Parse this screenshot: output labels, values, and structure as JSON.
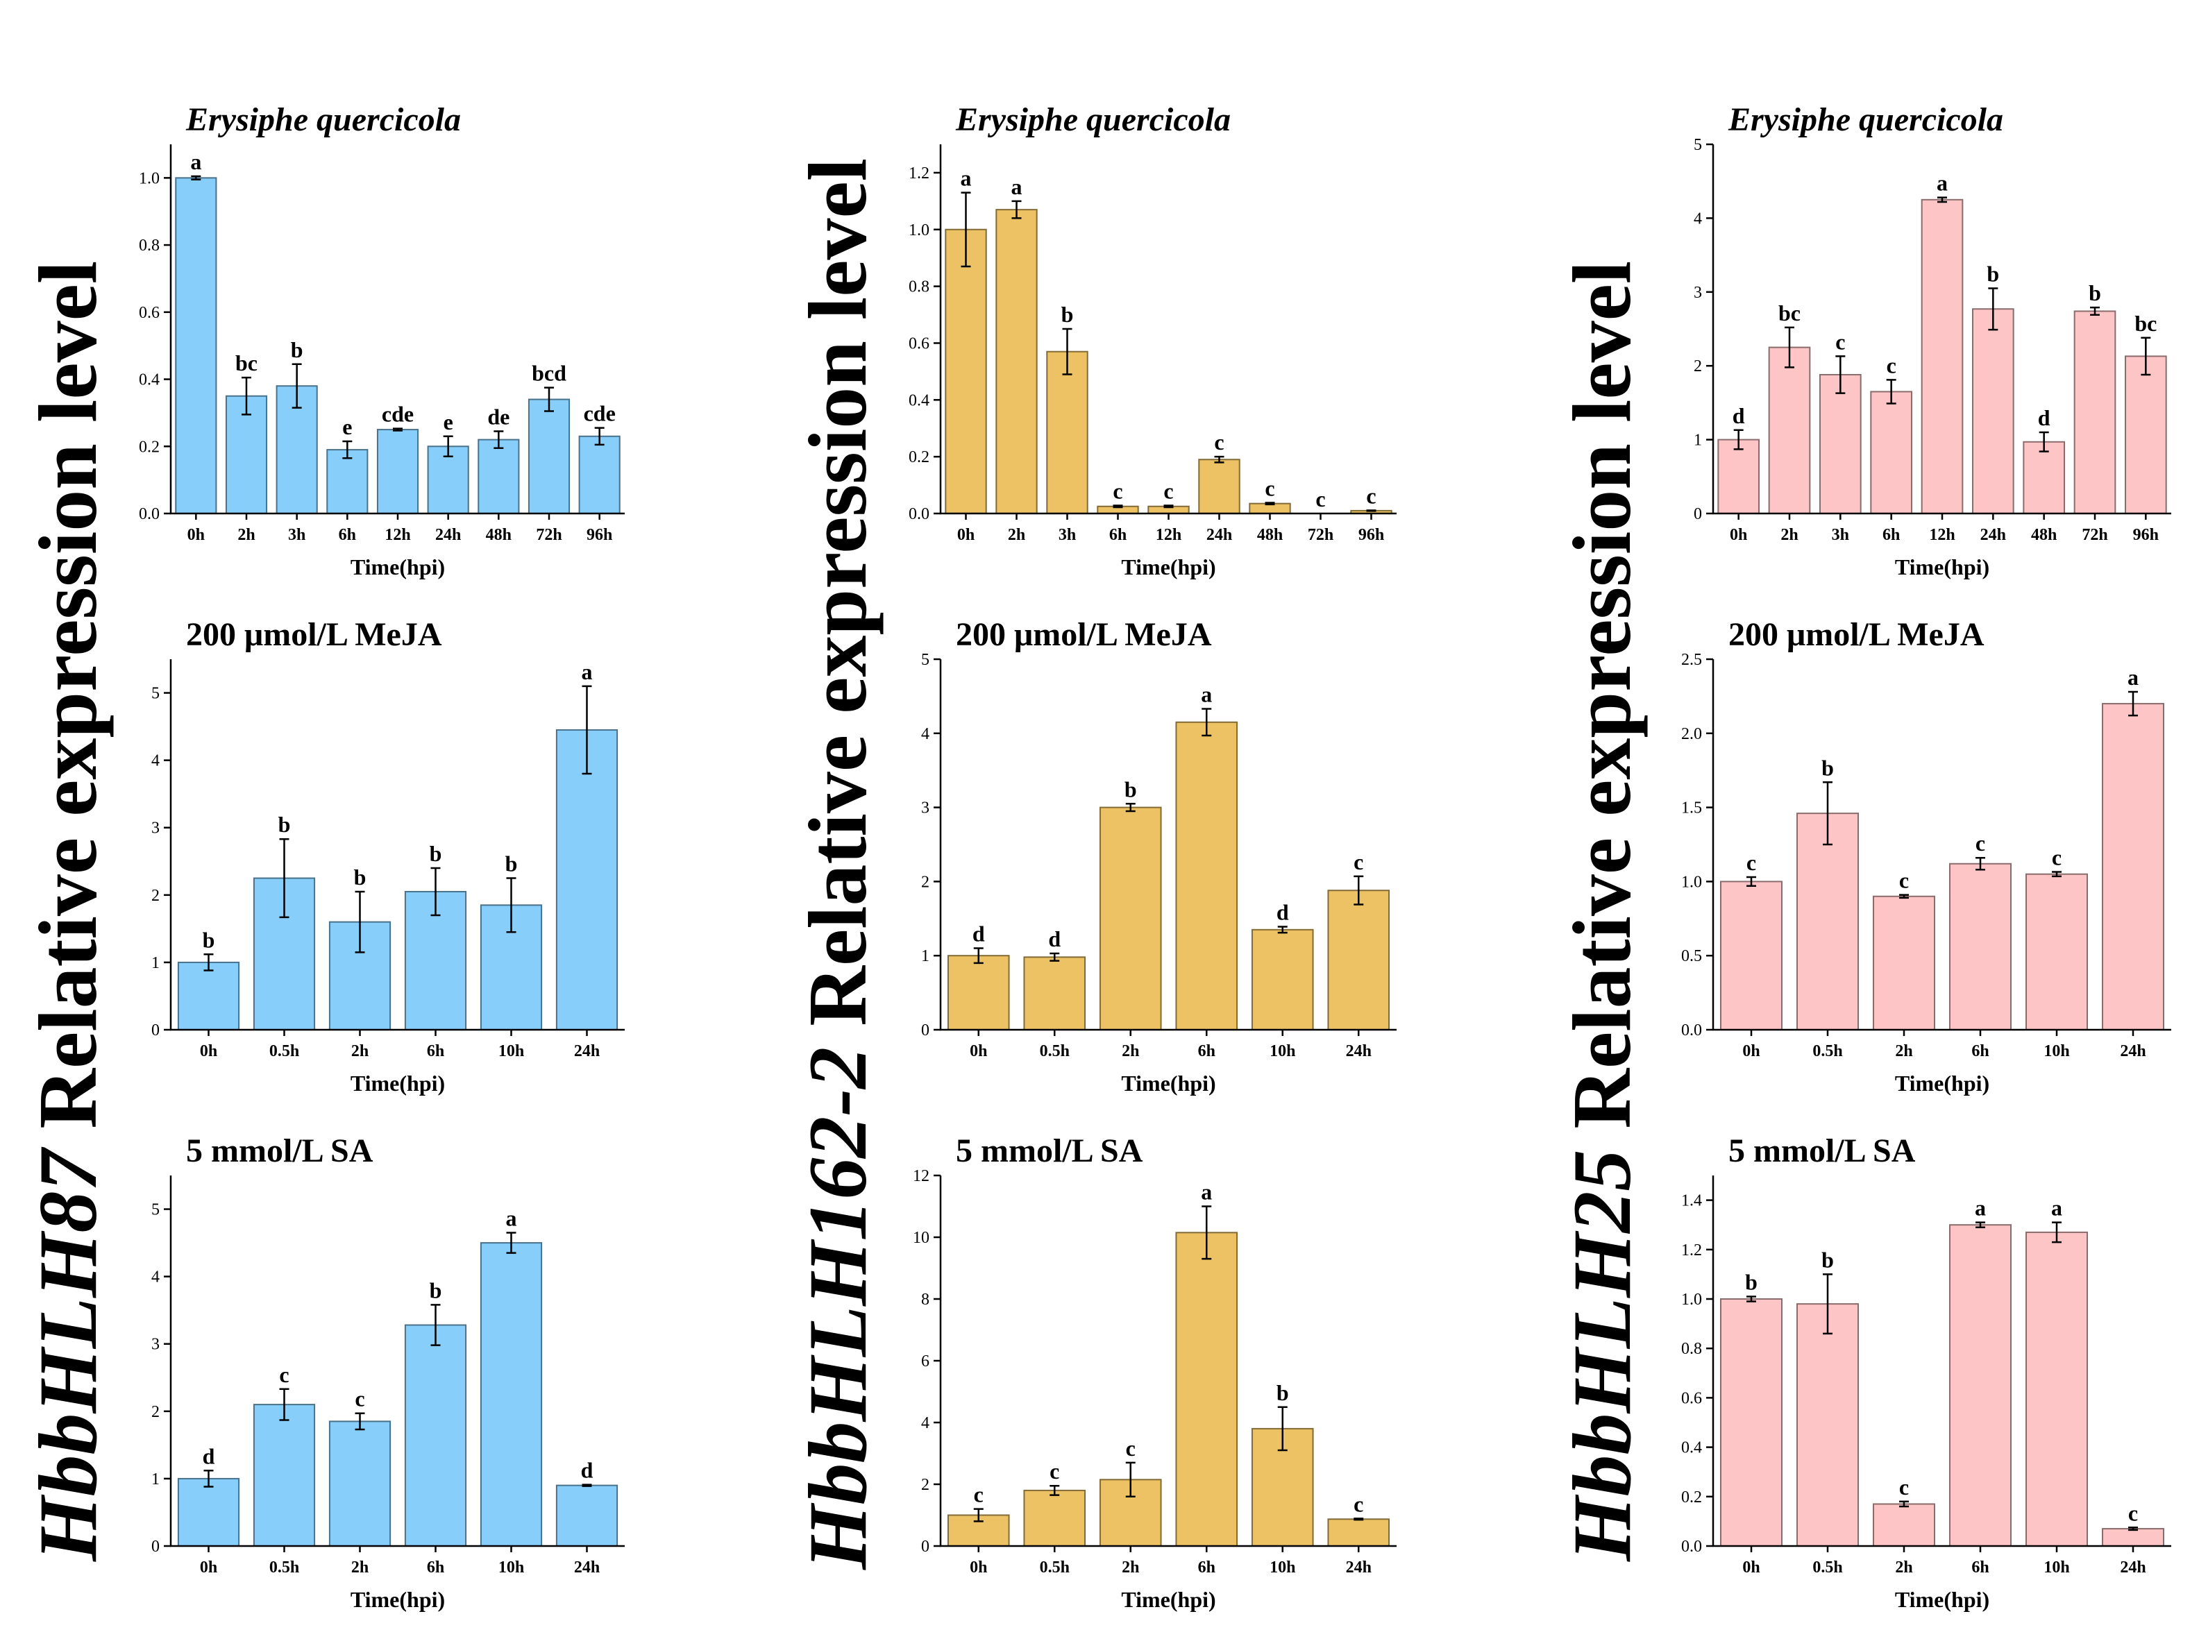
{
  "gene_labels": [
    {
      "gene": "HbbHLH87",
      "suffix": " Relative expression level"
    },
    {
      "gene": "HbbHLH162-2",
      "suffix": " Relative expression level"
    },
    {
      "gene": "HbbHLH25",
      "suffix": " Relative expression level"
    }
  ],
  "chart_data": [
    {
      "id": "c11",
      "col": 0,
      "row": 0,
      "type": "bar",
      "title": "Erysiphe quercicola",
      "title_italic": true,
      "xlabel": "Time(hpi)",
      "ylabel": "Relative expression level",
      "color": "#87cefa",
      "ylim": [
        0,
        1.1
      ],
      "yticks": [
        0.0,
        0.2,
        0.4,
        0.6,
        0.8,
        1.0
      ],
      "ytick_decimals": 1,
      "categories": [
        "0h",
        "2h",
        "3h",
        "6h",
        "12h",
        "24h",
        "48h",
        "72h",
        "96h"
      ],
      "values": [
        1.0,
        0.35,
        0.38,
        0.19,
        0.25,
        0.2,
        0.22,
        0.34,
        0.23
      ],
      "errors": [
        0.005,
        0.055,
        0.065,
        0.025,
        0.003,
        0.03,
        0.025,
        0.035,
        0.025
      ],
      "labels": [
        "a",
        "bc",
        "b",
        "e",
        "cde",
        "e",
        "de",
        "bcd",
        "cde"
      ]
    },
    {
      "id": "c12",
      "col": 1,
      "row": 0,
      "type": "bar",
      "title": "Erysiphe quercicola",
      "title_italic": true,
      "xlabel": "Time(hpi)",
      "ylabel": "Relative expression level",
      "color": "#ecc264",
      "ylim": [
        0,
        1.3
      ],
      "yticks": [
        0.0,
        0.2,
        0.4,
        0.6,
        0.8,
        1.0,
        1.2
      ],
      "ytick_decimals": 1,
      "categories": [
        "0h",
        "2h",
        "3h",
        "6h",
        "12h",
        "24h",
        "48h",
        "72h",
        "96h"
      ],
      "values": [
        1.0,
        1.07,
        0.57,
        0.025,
        0.025,
        0.19,
        0.035,
        0.0,
        0.01
      ],
      "errors": [
        0.13,
        0.03,
        0.08,
        0.003,
        0.003,
        0.01,
        0.003,
        0.0,
        0.001
      ],
      "labels": [
        "a",
        "a",
        "b",
        "c",
        "c",
        "c",
        "c",
        "c",
        "c"
      ]
    },
    {
      "id": "c13",
      "col": 2,
      "row": 0,
      "type": "bar",
      "title": "Erysiphe quercicola",
      "title_italic": true,
      "xlabel": "Time(hpi)",
      "ylabel": "Relative expression level",
      "color": "#fdc5c5",
      "ylim": [
        0,
        5
      ],
      "yticks": [
        0,
        1,
        2,
        3,
        4,
        5
      ],
      "ytick_decimals": 0,
      "categories": [
        "0h",
        "2h",
        "3h",
        "6h",
        "12h",
        "24h",
        "48h",
        "72h",
        "96h"
      ],
      "values": [
        1.0,
        2.25,
        1.88,
        1.65,
        4.25,
        2.77,
        0.97,
        2.74,
        2.13
      ],
      "errors": [
        0.13,
        0.27,
        0.25,
        0.16,
        0.03,
        0.28,
        0.13,
        0.05,
        0.25
      ],
      "labels": [
        "d",
        "bc",
        "c",
        "c",
        "a",
        "b",
        "d",
        "b",
        "bc"
      ]
    },
    {
      "id": "c21",
      "col": 0,
      "row": 1,
      "type": "bar",
      "title": "200 μmol/L MeJA",
      "title_italic": false,
      "xlabel": "Time(hpi)",
      "ylabel": "Relative expression level",
      "color": "#87cefa",
      "ylim": [
        0,
        5.5
      ],
      "yticks": [
        0,
        1,
        2,
        3,
        4,
        5
      ],
      "ytick_decimals": 0,
      "categories": [
        "0h",
        "0.5h",
        "2h",
        "6h",
        "10h",
        "24h"
      ],
      "values": [
        1.0,
        2.25,
        1.6,
        2.05,
        1.85,
        4.45
      ],
      "errors": [
        0.12,
        0.58,
        0.45,
        0.35,
        0.4,
        0.65
      ],
      "labels": [
        "b",
        "b",
        "b",
        "b",
        "b",
        "a"
      ]
    },
    {
      "id": "c22",
      "col": 1,
      "row": 1,
      "type": "bar",
      "title": "200 μmol/L MeJA",
      "title_italic": false,
      "xlabel": "Time(hpi)",
      "ylabel": "Relative expression level",
      "color": "#ecc264",
      "ylim": [
        0,
        5
      ],
      "yticks": [
        0,
        1,
        2,
        3,
        4,
        5
      ],
      "ytick_decimals": 0,
      "categories": [
        "0h",
        "0.5h",
        "2h",
        "6h",
        "10h",
        "24h"
      ],
      "values": [
        1.0,
        0.98,
        3.0,
        4.15,
        1.35,
        1.88
      ],
      "errors": [
        0.1,
        0.05,
        0.05,
        0.18,
        0.04,
        0.19
      ],
      "labels": [
        "d",
        "d",
        "b",
        "a",
        "d",
        "c"
      ]
    },
    {
      "id": "c23",
      "col": 2,
      "row": 1,
      "type": "bar",
      "title": "200 μmol/L MeJA",
      "title_italic": false,
      "xlabel": "Time(hpi)",
      "ylabel": "Relative expression level",
      "color": "#fdc5c5",
      "ylim": [
        0,
        2.5
      ],
      "yticks": [
        0.0,
        0.5,
        1.0,
        1.5,
        2.0,
        2.5
      ],
      "ytick_decimals": 1,
      "categories": [
        "0h",
        "0.5h",
        "2h",
        "6h",
        "10h",
        "24h"
      ],
      "values": [
        1.0,
        1.46,
        0.9,
        1.12,
        1.05,
        2.2
      ],
      "errors": [
        0.03,
        0.21,
        0.01,
        0.04,
        0.015,
        0.08
      ],
      "labels": [
        "c",
        "b",
        "c",
        "c",
        "c",
        "a"
      ]
    },
    {
      "id": "c31",
      "col": 0,
      "row": 2,
      "type": "bar",
      "title": "5 mmol/L SA",
      "title_italic": false,
      "xlabel": "Time(hpi)",
      "ylabel": "Relative expression level",
      "color": "#87cefa",
      "ylim": [
        0,
        5.5
      ],
      "yticks": [
        0,
        1,
        2,
        3,
        4,
        5
      ],
      "ytick_decimals": 0,
      "categories": [
        "0h",
        "0.5h",
        "2h",
        "6h",
        "10h",
        "24h"
      ],
      "values": [
        1.0,
        2.1,
        1.85,
        3.28,
        4.5,
        0.9
      ],
      "errors": [
        0.12,
        0.23,
        0.12,
        0.3,
        0.15,
        0.01
      ],
      "labels": [
        "d",
        "c",
        "c",
        "b",
        "a",
        "d"
      ]
    },
    {
      "id": "c32",
      "col": 1,
      "row": 2,
      "type": "bar",
      "title": "5 mmol/L SA",
      "title_italic": false,
      "xlabel": "Time(hpi)",
      "ylabel": "Relative expression level",
      "color": "#ecc264",
      "ylim": [
        0,
        12
      ],
      "yticks": [
        0,
        2,
        4,
        6,
        8,
        10,
        12
      ],
      "ytick_decimals": 0,
      "categories": [
        "0h",
        "0.5h",
        "2h",
        "6h",
        "10h",
        "24h"
      ],
      "values": [
        1.0,
        1.8,
        2.15,
        10.15,
        3.8,
        0.87
      ],
      "errors": [
        0.2,
        0.15,
        0.55,
        0.85,
        0.7,
        0.02
      ],
      "labels": [
        "c",
        "c",
        "c",
        "a",
        "b",
        "c"
      ]
    },
    {
      "id": "c33",
      "col": 2,
      "row": 2,
      "type": "bar",
      "title": "5 mmol/L SA",
      "title_italic": false,
      "xlabel": "Time(hpi)",
      "ylabel": "Relative expression level",
      "color": "#fdc5c5",
      "ylim": [
        0,
        1.5
      ],
      "yticks": [
        0.0,
        0.2,
        0.4,
        0.6,
        0.8,
        1.0,
        1.2,
        1.4
      ],
      "ytick_decimals": 1,
      "categories": [
        "0h",
        "0.5h",
        "2h",
        "6h",
        "10h",
        "24h"
      ],
      "values": [
        1.0,
        0.98,
        0.17,
        1.3,
        1.27,
        0.07
      ],
      "errors": [
        0.01,
        0.12,
        0.01,
        0.01,
        0.04,
        0.005
      ],
      "labels": [
        "b",
        "b",
        "c",
        "a",
        "a",
        "c"
      ]
    }
  ]
}
